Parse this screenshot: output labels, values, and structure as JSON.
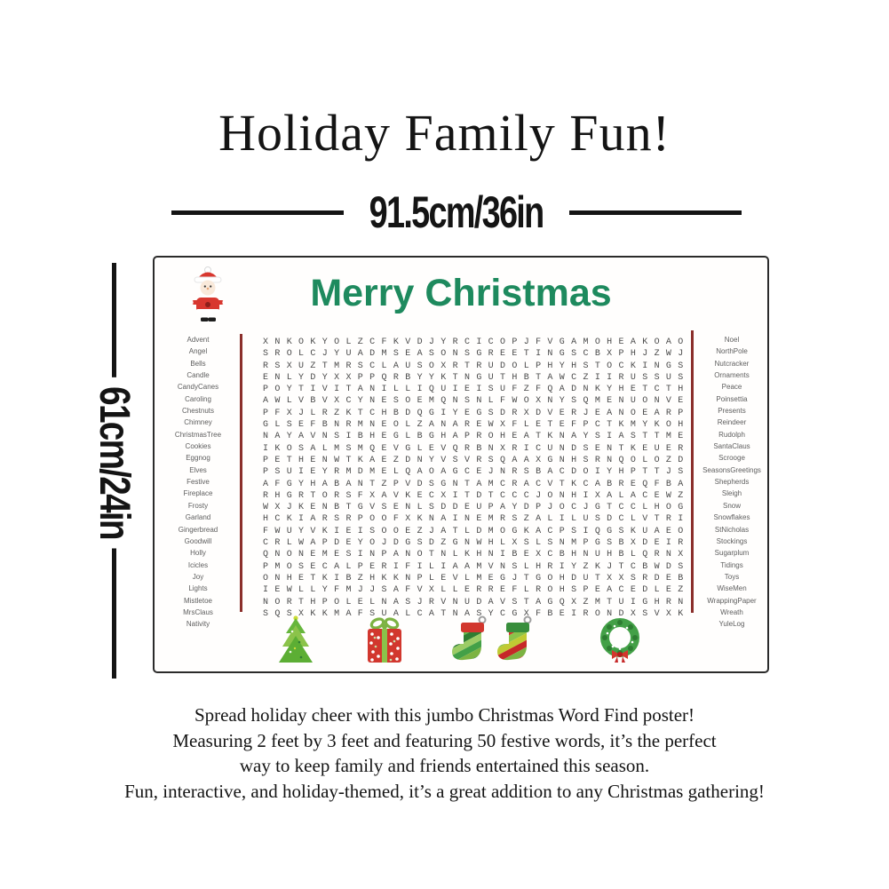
{
  "header": {
    "title": "Holiday Family Fun!",
    "width_dimension": "91.5cm/36in",
    "height_dimension": "61cm/24in"
  },
  "poster": {
    "title": "Merry Christmas",
    "left_words": [
      "Advent",
      "Angel",
      "Bells",
      "Candle",
      "CandyCanes",
      "Caroling",
      "Chestnuts",
      "Chimney",
      "ChristmasTree",
      "Cookies",
      "Eggnog",
      "Elves",
      "Festive",
      "Fireplace",
      "Frosty",
      "Garland",
      "Gingerbread",
      "Goodwill",
      "Holly",
      "Icicles",
      "Joy",
      "Lights",
      "Mistletoe",
      "MrsClaus",
      "Nativity"
    ],
    "right_words": [
      "Noel",
      "NorthPole",
      "Nutcracker",
      "Ornaments",
      "Peace",
      "Poinsettia",
      "Presents",
      "Reindeer",
      "Rudolph",
      "SantaClaus",
      "Scrooge",
      "SeasonsGreetings",
      "Shepherds",
      "Sleigh",
      "Snow",
      "Snowflakes",
      "StNicholas",
      "Stockings",
      "Sugarplum",
      "Tidings",
      "Toys",
      "WiseMen",
      "WrappingPaper",
      "Wreath",
      "YuleLog"
    ],
    "grid_rows": [
      "XNKOKYOLZCFKVDJYRCICOPJFVGAMOHEAKOAO",
      "SROLCJYUADMSEASONSGREETINGSCBXPHJZWJ",
      "RSXUZTMRSCLAUSOXRTRUDOLPHYHSTOCKINGS",
      "ENLYDYXXPPQRBYYKTNGUTHBTAWCZIIRUSSUS",
      "POYTIVITANILLIQUIEISUFZFQADNKYHETCTH",
      "AWLVBVXCYNESOEMQNSNLFWOXNYSQMENUONVE",
      "PFXJLRZKTCHBDQGIYEGSDRXDVERJEANOEARP",
      "GLSEFBNRMNEOLZANAREWXFLETEFPCTKMYKOH",
      "NAYAVNSIBHEGLBGHAPROHEATKNAYSIASTTME",
      "IKOSALMSMQEVGLEVQRBNXRICUNDSENTKEUER",
      "PETHENWTKAEZDNYVSVRSQAAXGNHSRNQOLOZD",
      "PSUIEYRMDMELQAOAGCEJNRSBACDOIYHPTTJS",
      "AFGYHABANTZPVDSGNTAMCRACVTKCABREQFBA",
      "RHGRTORSFXAVKECXITDTCCCJONHIXALACEWZ",
      "WXJKENBTGVSENLSDDEUPAYDPJOCJGTCCLHOG",
      "HCKIARSRPOOFXKNAINEMRSZALILUSDCLVTRI",
      "FWUYVKIEISOOEZJATLDMOGKACPSIQGSKUAEO",
      "CRLWAPDEYOJDGSDZGNWHLXSLSNMPGSBXDEIR",
      "QNONEMESINPANOTNLKHNIBEXCBHNUHBLQRNX",
      "PMOSECALPERIFILIAAMVNSLHRIYZKJTCBWDS",
      "ONHETKIBZHKKNPLEVLMEGJTGOHDUTXXSRDEB",
      "IEWLLYFMJJSAFVXLLERREFLROHSPEACEDLEZ",
      "NORTHPOLELNASJRVNUDAVSTAGQXZMTUIGHRN",
      "SQSXKKMAFSUALCATNASYCGXFBEIRONDXSVXK"
    ],
    "icons": [
      "santa",
      "christmas-tree",
      "gift",
      "stocking",
      "stocking",
      "wreath"
    ]
  },
  "description": {
    "lines": [
      "Spread holiday cheer with this jumbo Christmas Word Find poster!",
      "Measuring 2 feet by 3 feet and featuring 50 festive words, it’s the perfect",
      "way to keep family and friends entertained this season.",
      "Fun, interactive, and holiday-themed, it’s a great addition to any Christmas gathering!"
    ]
  },
  "colors": {
    "ink": "#141414",
    "green": "#1e8a5e",
    "divider": "#8b2f2b",
    "grid-letter": "#4a4a4a",
    "word-text": "#5e5e5e"
  }
}
